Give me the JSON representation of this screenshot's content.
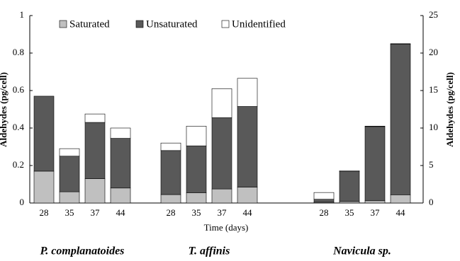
{
  "chart_data": {
    "type": "stacked_bar",
    "x_label": "Time (days)",
    "y_label": "Aldehydes (pg/cell)",
    "y2_label": "Aldehydes (pg/cell)",
    "ylim": [
      0,
      1
    ],
    "yticks": [
      0,
      0.2,
      0.4,
      0.6,
      0.8,
      1
    ],
    "y2lim": [
      0,
      25
    ],
    "y2ticks": [
      0,
      5,
      10,
      15,
      20,
      25
    ],
    "groups": [
      {
        "label": "P. complanatoides",
        "axis": "y",
        "categories": [
          "28",
          "35",
          "37",
          "44"
        ]
      },
      {
        "label": "T. affinis",
        "axis": "y",
        "categories": [
          "28",
          "35",
          "37",
          "44"
        ]
      },
      {
        "label": "Navicula sp.",
        "axis": "y2",
        "categories": [
          "28",
          "35",
          "37",
          "44"
        ]
      }
    ],
    "series": [
      {
        "name": "Saturated",
        "color": "#c0c0c0",
        "values": [
          [
            0.17,
            0.06,
            0.13,
            0.08
          ],
          [
            0.045,
            0.055,
            0.075,
            0.085
          ],
          [
            0.1,
            0.2,
            0.3,
            1.1
          ]
        ]
      },
      {
        "name": "Unsaturated",
        "color": "#595959",
        "values": [
          [
            0.4,
            0.19,
            0.3,
            0.265
          ],
          [
            0.235,
            0.25,
            0.38,
            0.43
          ],
          [
            0.4,
            4.0,
            9.9,
            20.1
          ]
        ]
      },
      {
        "name": "Unidentified",
        "color": "#ffffff",
        "values": [
          [
            0,
            0.04,
            0.045,
            0.055
          ],
          [
            0.04,
            0.105,
            0.155,
            0.15
          ],
          [
            0.9,
            0.1,
            0.05,
            0.05
          ]
        ]
      }
    ]
  }
}
